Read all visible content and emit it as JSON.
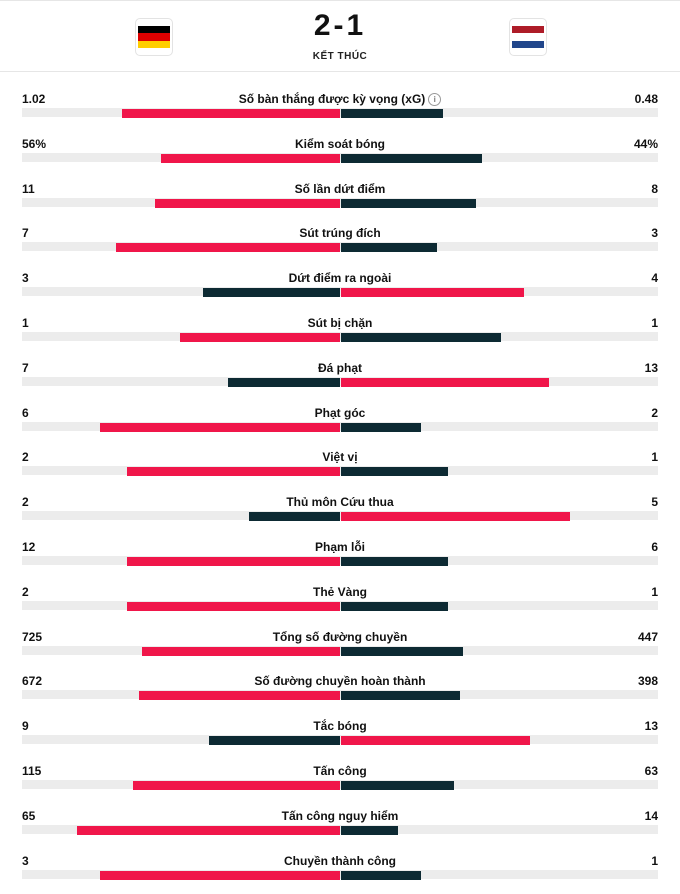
{
  "match": {
    "score": "2-1",
    "status": "KẾT THÚC",
    "home_flag": "germany-flag",
    "away_flag": "netherlands-flag"
  },
  "colors": {
    "leader": "#f0164a",
    "trailer": "#0d2a33",
    "track": "#ececec"
  },
  "stats": [
    {
      "label": "Số bàn thắng được kỳ vọng (xG)",
      "home": "1.02",
      "away": "0.48",
      "hv": 1.02,
      "av": 0.48,
      "info": true
    },
    {
      "label": "Kiểm soát bóng",
      "home": "56%",
      "away": "44%",
      "hv": 56,
      "av": 44
    },
    {
      "label": "Số lần dứt điểm",
      "home": "11",
      "away": "8",
      "hv": 11,
      "av": 8
    },
    {
      "label": "Sút trúng đích",
      "home": "7",
      "away": "3",
      "hv": 7,
      "av": 3
    },
    {
      "label": "Dứt điểm ra ngoài",
      "home": "3",
      "away": "4",
      "hv": 3,
      "av": 4
    },
    {
      "label": "Sút bị chặn",
      "home": "1",
      "away": "1",
      "hv": 1,
      "av": 1
    },
    {
      "label": "Đá phạt",
      "home": "7",
      "away": "13",
      "hv": 7,
      "av": 13
    },
    {
      "label": "Phạt góc",
      "home": "6",
      "away": "2",
      "hv": 6,
      "av": 2
    },
    {
      "label": "Việt vị",
      "home": "2",
      "away": "1",
      "hv": 2,
      "av": 1
    },
    {
      "label": "Thủ môn Cứu thua",
      "home": "2",
      "away": "5",
      "hv": 2,
      "av": 5
    },
    {
      "label": "Phạm lỗi",
      "home": "12",
      "away": "6",
      "hv": 12,
      "av": 6
    },
    {
      "label": "Thẻ Vàng",
      "home": "2",
      "away": "1",
      "hv": 2,
      "av": 1
    },
    {
      "label": "Tổng số đường chuyền",
      "home": "725",
      "away": "447",
      "hv": 725,
      "av": 447
    },
    {
      "label": "Số đường chuyền hoàn thành",
      "home": "672",
      "away": "398",
      "hv": 672,
      "av": 398
    },
    {
      "label": "Tắc bóng",
      "home": "9",
      "away": "13",
      "hv": 9,
      "av": 13
    },
    {
      "label": "Tấn công",
      "home": "115",
      "away": "63",
      "hv": 115,
      "av": 63
    },
    {
      "label": "Tấn công nguy hiểm",
      "home": "65",
      "away": "14",
      "hv": 65,
      "av": 14
    },
    {
      "label": "Chuyền thành công",
      "home": "3",
      "away": "1",
      "hv": 3,
      "av": 1
    }
  ]
}
